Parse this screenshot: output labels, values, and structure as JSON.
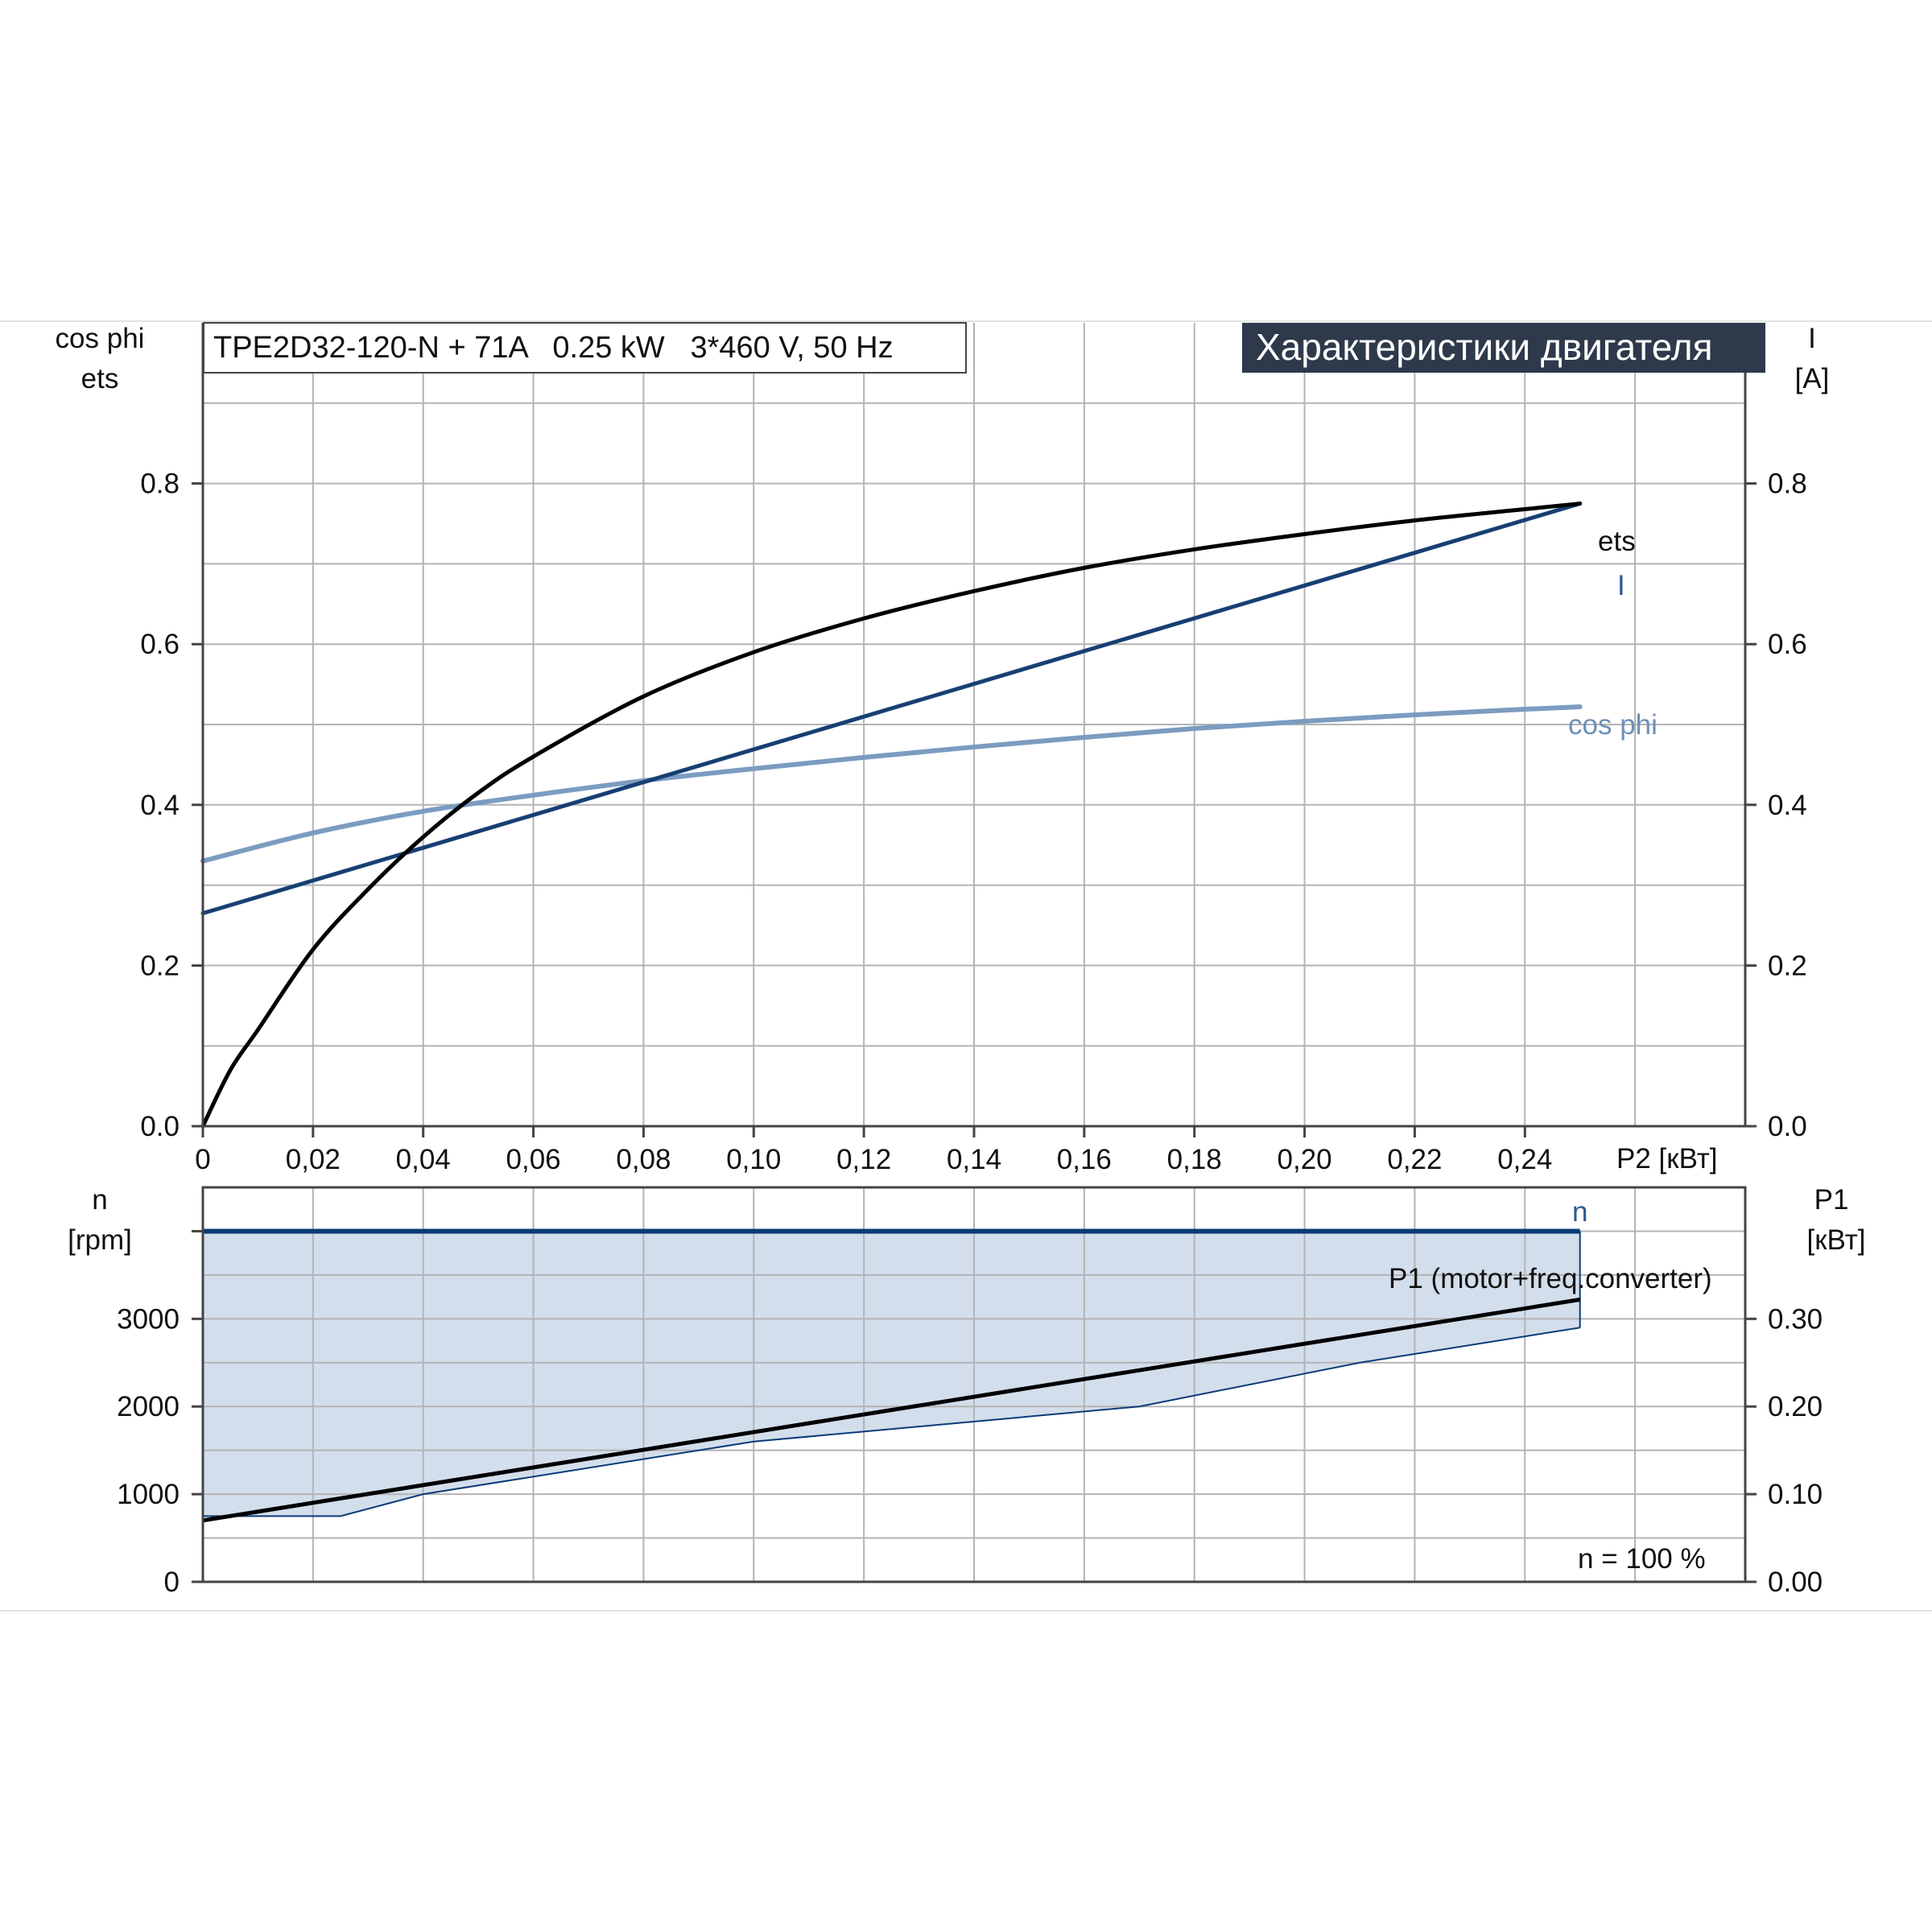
{
  "colors": {
    "ets": "#000000",
    "current": "#173f73",
    "cos_phi": "#7b9cc0",
    "speed": "#0b3a78",
    "fill": "#d3deec",
    "grid": "#b3b3b3",
    "title_bg": "#2e3a4b"
  },
  "header": {
    "model": "TPE2D32-120-N + 71A   0.25 kW   3*460 V, 50 Hz",
    "section_title": "Характеристики двигателя"
  },
  "chart_data": [
    {
      "type": "line",
      "title": "",
      "xlabel": "P2 [кВт]",
      "x_ticks": [
        "0",
        "0,02",
        "0,04",
        "0,06",
        "0,08",
        "0,10",
        "0,12",
        "0,14",
        "0,16",
        "0,18",
        "0,20",
        "0,22",
        "0,24"
      ],
      "xlim": [
        0,
        0.28
      ],
      "ylabel_left": [
        "cos phi",
        "ets"
      ],
      "ylabel_right": [
        "I",
        "[A]"
      ],
      "ylim": [
        0,
        1.0
      ],
      "y_ticks_left": [
        "0.0",
        "0.2",
        "0.4",
        "0.6",
        "0.8"
      ],
      "y_ticks_right": [
        "0.0",
        "0.2",
        "0.4",
        "0.6",
        "0.8"
      ],
      "grid": true,
      "series": [
        {
          "name": "ets",
          "x": [
            0,
            0.005,
            0.01,
            0.02,
            0.03,
            0.04,
            0.05,
            0.06,
            0.08,
            0.1,
            0.12,
            0.14,
            0.16,
            0.18,
            0.2,
            0.22,
            0.24,
            0.25
          ],
          "y": [
            0,
            0.07,
            0.12,
            0.22,
            0.295,
            0.36,
            0.415,
            0.46,
            0.535,
            0.59,
            0.632,
            0.666,
            0.695,
            0.718,
            0.737,
            0.754,
            0.768,
            0.775
          ]
        },
        {
          "name": "I",
          "x": [
            0,
            0.25
          ],
          "y": [
            0.265,
            0.775
          ]
        },
        {
          "name": "cos phi",
          "x": [
            0,
            0.02,
            0.04,
            0.06,
            0.08,
            0.1,
            0.12,
            0.14,
            0.16,
            0.18,
            0.2,
            0.22,
            0.24,
            0.25
          ],
          "y": [
            0.33,
            0.365,
            0.392,
            0.412,
            0.43,
            0.445,
            0.459,
            0.472,
            0.484,
            0.495,
            0.504,
            0.512,
            0.519,
            0.522
          ]
        }
      ]
    },
    {
      "type": "area",
      "title": "",
      "ylabel_left": [
        "n",
        "[rpm]"
      ],
      "ylabel_right": [
        "P1",
        "[кВт]"
      ],
      "xlim": [
        0,
        0.28
      ],
      "ylim_left": [
        0,
        4500
      ],
      "ylim_right": [
        0,
        0.45
      ],
      "y_ticks_left": [
        "0",
        "1000",
        "2000",
        "3000"
      ],
      "y_ticks_right": [
        "0.00",
        "0.10",
        "0.20",
        "0.30"
      ],
      "grid": true,
      "annotation": "n = 100 %",
      "series": [
        {
          "name": "n",
          "axis": "left",
          "x": [
            0,
            0.25
          ],
          "y": [
            4000,
            4000
          ]
        },
        {
          "name": "P1 (motor+freq.converter)",
          "axis": "right",
          "x": [
            0,
            0.25
          ],
          "y": [
            0.07,
            0.322
          ]
        },
        {
          "name": "",
          "axis": "right",
          "x": [
            0,
            0.025,
            0.04,
            0.1,
            0.17,
            0.21,
            0.25
          ],
          "y": [
            0.075,
            0.075,
            0.1,
            0.16,
            0.2,
            0.25,
            0.29
          ]
        }
      ]
    }
  ]
}
